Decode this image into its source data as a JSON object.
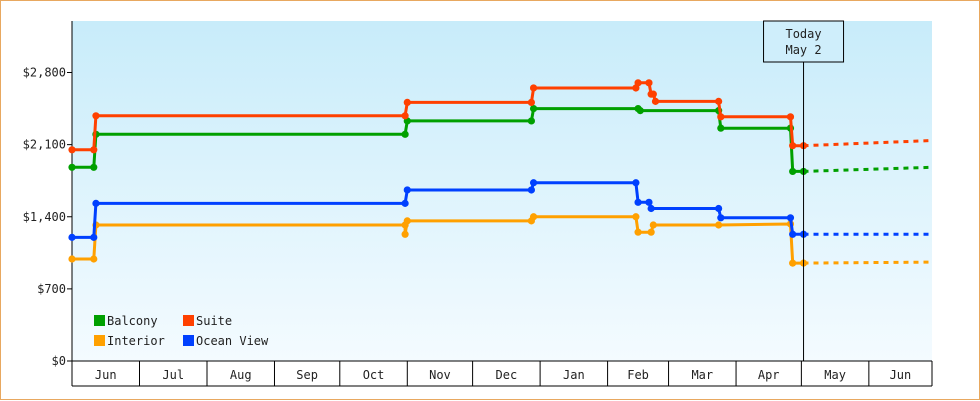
{
  "chart_data": {
    "type": "line",
    "title": "",
    "xlabel": "",
    "ylabel": "",
    "ylim": [
      0,
      3300
    ],
    "y_ticks": [
      {
        "value": 0,
        "label": "$0"
      },
      {
        "value": 700,
        "label": "$700"
      },
      {
        "value": 1400,
        "label": "$1,400"
      },
      {
        "value": 2100,
        "label": "$2,100"
      },
      {
        "value": 2800,
        "label": "$2,800"
      }
    ],
    "x_range": [
      "2024-05-31",
      "2025-06-30"
    ],
    "months": [
      {
        "label": "Jun",
        "start": "2024-05-31",
        "end": "2024-07-01"
      },
      {
        "label": "Jul",
        "start": "2024-07-01",
        "end": "2024-08-01"
      },
      {
        "label": "Aug",
        "start": "2024-08-01",
        "end": "2024-09-01"
      },
      {
        "label": "Sep",
        "start": "2024-09-01",
        "end": "2024-10-01"
      },
      {
        "label": "Oct",
        "start": "2024-10-01",
        "end": "2024-11-01"
      },
      {
        "label": "Nov",
        "start": "2024-11-01",
        "end": "2024-12-01"
      },
      {
        "label": "Dec",
        "start": "2024-12-01",
        "end": "2025-01-01"
      },
      {
        "label": "Jan",
        "start": "2025-01-01",
        "end": "2025-02-01"
      },
      {
        "label": "Feb",
        "start": "2025-02-01",
        "end": "2025-03-01"
      },
      {
        "label": "Mar",
        "start": "2025-03-01",
        "end": "2025-04-01"
      },
      {
        "label": "Apr",
        "start": "2025-04-01",
        "end": "2025-05-01"
      },
      {
        "label": "May",
        "start": "2025-05-01",
        "end": "2025-06-01"
      },
      {
        "label": "Jun",
        "start": "2025-06-01",
        "end": "2025-06-30"
      }
    ],
    "today": {
      "line1": "Today",
      "line2": "May 2",
      "date": "2025-05-02"
    },
    "projection_end": "2025-06-30",
    "legend_position": "bottom-left",
    "series": [
      {
        "name": "Balcony",
        "color": "#00a000",
        "points": [
          [
            "2024-05-31",
            1880
          ],
          [
            "2024-06-10",
            1880
          ],
          [
            "2024-06-11",
            2200
          ],
          [
            "2024-10-31",
            2200
          ],
          [
            "2024-11-01",
            2330
          ],
          [
            "2024-12-28",
            2330
          ],
          [
            "2024-12-29",
            2450
          ],
          [
            "2025-02-15",
            2450
          ],
          [
            "2025-02-16",
            2430
          ],
          [
            "2025-03-24",
            2430
          ],
          [
            "2025-03-25",
            2260
          ],
          [
            "2025-04-26",
            2260
          ],
          [
            "2025-04-27",
            1840
          ],
          [
            "2025-05-02",
            1840
          ]
        ],
        "projection": [
          [
            "2025-05-02",
            1840
          ],
          [
            "2025-06-30",
            1880
          ]
        ]
      },
      {
        "name": "Suite",
        "color": "#ff4000",
        "points": [
          [
            "2024-05-31",
            2050
          ],
          [
            "2024-06-10",
            2050
          ],
          [
            "2024-06-11",
            2380
          ],
          [
            "2024-10-31",
            2380
          ],
          [
            "2024-11-01",
            2510
          ],
          [
            "2024-12-28",
            2510
          ],
          [
            "2024-12-29",
            2650
          ],
          [
            "2025-02-14",
            2650
          ],
          [
            "2025-02-15",
            2700
          ],
          [
            "2025-02-20",
            2700
          ],
          [
            "2025-02-21",
            2590
          ],
          [
            "2025-02-22",
            2590
          ],
          [
            "2025-02-23",
            2520
          ],
          [
            "2025-03-24",
            2520
          ],
          [
            "2025-03-25",
            2370
          ],
          [
            "2025-04-26",
            2370
          ],
          [
            "2025-04-27",
            2090
          ],
          [
            "2025-05-02",
            2090
          ]
        ],
        "projection": [
          [
            "2025-05-02",
            2090
          ],
          [
            "2025-06-30",
            2140
          ]
        ]
      },
      {
        "name": "Interior",
        "color": "#ffa000",
        "points": [
          [
            "2024-05-31",
            990
          ],
          [
            "2024-06-10",
            990
          ],
          [
            "2024-06-11",
            1320
          ],
          [
            "2024-10-31",
            1320
          ],
          [
            "2024-10-31",
            1230
          ],
          [
            "2024-11-01",
            1360
          ],
          [
            "2024-12-28",
            1360
          ],
          [
            "2024-12-29",
            1400
          ],
          [
            "2025-02-14",
            1400
          ],
          [
            "2025-02-15",
            1250
          ],
          [
            "2025-02-21",
            1250
          ],
          [
            "2025-02-22",
            1320
          ],
          [
            "2025-03-24",
            1320
          ],
          [
            "2025-04-26",
            1330
          ],
          [
            "2025-04-27",
            950
          ],
          [
            "2025-05-02",
            950
          ]
        ],
        "projection": [
          [
            "2025-05-02",
            950
          ],
          [
            "2025-06-30",
            960
          ]
        ]
      },
      {
        "name": "Ocean View",
        "color": "#0040ff",
        "points": [
          [
            "2024-05-31",
            1200
          ],
          [
            "2024-06-10",
            1200
          ],
          [
            "2024-06-11",
            1530
          ],
          [
            "2024-10-31",
            1530
          ],
          [
            "2024-11-01",
            1660
          ],
          [
            "2024-12-28",
            1660
          ],
          [
            "2024-12-29",
            1730
          ],
          [
            "2025-02-14",
            1730
          ],
          [
            "2025-02-15",
            1540
          ],
          [
            "2025-02-20",
            1540
          ],
          [
            "2025-02-21",
            1480
          ],
          [
            "2025-03-24",
            1480
          ],
          [
            "2025-03-25",
            1390
          ],
          [
            "2025-04-26",
            1390
          ],
          [
            "2025-04-27",
            1230
          ],
          [
            "2025-05-02",
            1230
          ]
        ],
        "projection": [
          [
            "2025-05-02",
            1230
          ],
          [
            "2025-06-30",
            1230
          ]
        ]
      }
    ]
  }
}
